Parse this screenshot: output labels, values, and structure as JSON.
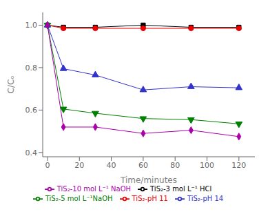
{
  "chart_data": {
    "type": "line",
    "xlabel": "Time/minutes",
    "ylabel": "C/Cₒ",
    "x": [
      0,
      10,
      30,
      60,
      90,
      120
    ],
    "series": [
      {
        "name": "TiS₂-3 mol L⁻¹ HCl",
        "color": "#000000",
        "marker": "square",
        "values": [
          1.0,
          0.99,
          0.99,
          1.0,
          0.99,
          0.99
        ]
      },
      {
        "name": "TiS₂-pH 11",
        "color": "#ee0000",
        "marker": "circle",
        "values": [
          1.0,
          0.985,
          0.985,
          0.985,
          0.985,
          0.985
        ]
      },
      {
        "name": "TiS₂-pH 14",
        "color": "#3333cc",
        "marker": "triangle",
        "values": [
          1.0,
          0.795,
          0.765,
          0.695,
          0.71,
          0.705
        ]
      },
      {
        "name": "TiS₂-5 mol L⁻¹NaOH",
        "color": "#008000",
        "marker": "triangle-down",
        "values": [
          1.0,
          0.605,
          0.585,
          0.56,
          0.555,
          0.535
        ]
      },
      {
        "name": "TiS₂-10 mol L⁻¹ NaOH",
        "color": "#aa00aa",
        "marker": "diamond",
        "values": [
          1.0,
          0.52,
          0.52,
          0.49,
          0.505,
          0.475
        ]
      }
    ],
    "xlim": [
      -3,
      130
    ],
    "ylim": [
      0.38,
      1.06
    ],
    "xticks": [
      0,
      20,
      40,
      60,
      80,
      100,
      120
    ],
    "yticks": [
      0.4,
      0.6,
      0.8,
      {
        "value": 1.0,
        "label": "1.0"
      }
    ],
    "grid": false,
    "legend": "bottom"
  }
}
